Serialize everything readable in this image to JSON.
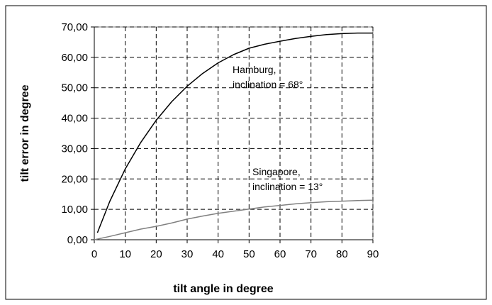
{
  "chart_data": {
    "type": "line",
    "title": "",
    "xlabel": "tilt angle in degree",
    "ylabel": "tilt error in degree",
    "xlim": [
      0,
      90
    ],
    "ylim": [
      0,
      70
    ],
    "x_ticks": [
      "0",
      "10",
      "20",
      "30",
      "40",
      "50",
      "60",
      "70",
      "80",
      "90"
    ],
    "y_ticks": [
      "0,00",
      "10,00",
      "20,00",
      "30,00",
      "40,00",
      "50,00",
      "60,00",
      "70,00"
    ],
    "grid": true,
    "legend": "none",
    "series": [
      {
        "name": "Hamburg, inclination = 68°",
        "color": "#000000",
        "x": [
          1,
          5,
          10,
          15,
          20,
          25,
          30,
          35,
          40,
          45,
          50,
          55,
          60,
          65,
          70,
          75,
          80,
          85,
          90
        ],
        "y": [
          2.3,
          12.6,
          23.3,
          32.0,
          39.3,
          45.4,
          50.5,
          54.7,
          58.2,
          60.9,
          63.0,
          64.3,
          65.3,
          66.2,
          66.9,
          67.5,
          67.8,
          68.0,
          68.0
        ]
      },
      {
        "name": "Singapore, inclination = 13°",
        "color": "#808080",
        "x": [
          0,
          5,
          10,
          15,
          20,
          25,
          30,
          35,
          40,
          45,
          50,
          55,
          60,
          65,
          70,
          75,
          80,
          85,
          90
        ],
        "y": [
          0.0,
          1.1,
          2.3,
          3.5,
          4.4,
          5.5,
          6.8,
          7.8,
          8.7,
          9.4,
          10.1,
          10.8,
          11.3,
          11.8,
          12.2,
          12.5,
          12.7,
          12.9,
          13.0
        ]
      }
    ],
    "annotations": [
      {
        "line1": "Hamburg,",
        "line2": "inclination = 68°"
      },
      {
        "line1": "Singapore,",
        "line2": "inclination = 13°"
      }
    ]
  }
}
